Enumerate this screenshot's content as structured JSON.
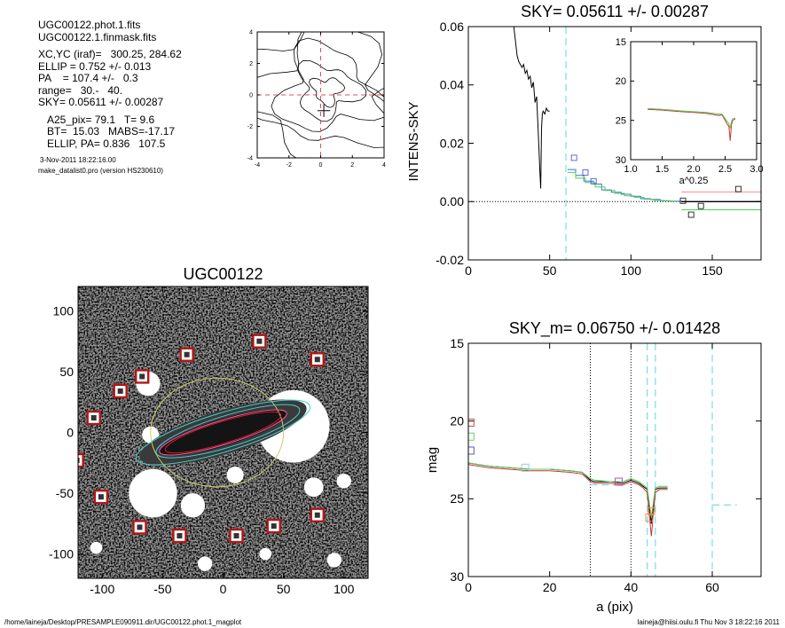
{
  "info": {
    "file1": "UGC00122.phot.1.fits",
    "file2": "UGC00122.1.finmask.fits",
    "xcyc": "XC,YC (iraf)=   300.25, 284.62",
    "ellip": "ELLIP = 0.752 +/- 0.013",
    "pa": "PA    = 107.4 +/-   0.3",
    "range": "range=   30.-   40.",
    "sky": "SKY= 0.05611 +/- 0.00287",
    "a25": "A25_pix= 79.1   T= 9.6",
    "bt": "BT=  15.03   MABS=-17.17",
    "ellip_pa": "ELLIP, PA= 0.836   107.5",
    "date": "3-Nov-2011 18:22:16.00",
    "program": "make_datalist0.pro (version HS230610)"
  },
  "footer": {
    "left": "/home/laineja/Desktop/PRESAMPLE090911.dir/UGC00122.phot.1_magplot",
    "right": "laineja@hiisi.oulu.fi  Thu Nov  3 18:22:16 2011"
  },
  "chart_data": [
    {
      "id": "contour",
      "type": "contour",
      "title": "",
      "xlim": [
        -4,
        4
      ],
      "ylim": [
        -4,
        4
      ],
      "xticks": [
        -4,
        -2,
        0,
        2,
        4
      ],
      "yticks": [
        -4,
        -2,
        0,
        2,
        4
      ],
      "center": [
        0,
        0
      ]
    },
    {
      "id": "sky",
      "type": "line",
      "title": "SKY= 0.05611 +/- 0.00287",
      "xlabel": "",
      "ylabel": "INTENS-SKY",
      "xlim": [
        0,
        180
      ],
      "ylim": [
        -0.02,
        0.06
      ],
      "xticks": [
        0,
        50,
        100,
        150
      ],
      "yticks": [
        -0.02,
        0.0,
        0.02,
        0.04,
        0.06
      ],
      "ytick_labels": [
        "-0.02",
        "0.00",
        "0.02",
        "0.04",
        "0.06"
      ],
      "vline": 60,
      "series": [
        {
          "color": "#000000",
          "x": [
            28,
            30,
            31,
            33,
            34,
            35,
            36,
            37,
            38,
            39,
            40,
            41,
            42,
            43,
            44,
            44.5,
            45,
            45.5,
            46,
            47,
            48,
            49,
            50
          ],
          "y": [
            0.06,
            0.05,
            0.048,
            0.046,
            0.047,
            0.044,
            0.045,
            0.042,
            0.043,
            0.039,
            0.041,
            0.034,
            0.036,
            0.024,
            0.01,
            0.0045,
            0.025,
            0.03,
            0.031,
            0.03,
            0.032,
            0.031,
            0.031
          ]
        },
        {
          "color": "#3377cc",
          "x": [
            61,
            66,
            66,
            71,
            71,
            77,
            77,
            82,
            82,
            88,
            88,
            94,
            94,
            100,
            100,
            106,
            106,
            112,
            112,
            118,
            118,
            124,
            124,
            131
          ],
          "y": [
            0.011,
            0.011,
            0.009,
            0.009,
            0.007,
            0.007,
            0.006,
            0.006,
            0.004,
            0.004,
            0.0032,
            0.0032,
            0.0025,
            0.0025,
            0.0018,
            0.0018,
            0.001,
            0.001,
            0.0007,
            0.0007,
            0.0003,
            0.0003,
            0.0001,
            0.0001
          ]
        },
        {
          "color": "#55cc55",
          "x": [
            61,
            66,
            66,
            72,
            72,
            78,
            78,
            84,
            84,
            90,
            90,
            96,
            96,
            102,
            102,
            108,
            108,
            114,
            114,
            120,
            120,
            128
          ],
          "y": [
            0.01,
            0.01,
            0.008,
            0.008,
            0.0065,
            0.0065,
            0.005,
            0.005,
            0.0038,
            0.0038,
            0.0028,
            0.0028,
            0.002,
            0.002,
            0.0014,
            0.0014,
            0.0008,
            0.0008,
            0.0004,
            0.0004,
            0.0002,
            0.0002
          ]
        },
        {
          "color": "#000000",
          "x": [
            131,
            180
          ],
          "y": [
            0.0,
            0.0
          ]
        },
        {
          "color": "#ff8888",
          "x": [
            131,
            180
          ],
          "y": [
            0.0033,
            0.0033
          ]
        },
        {
          "color": "#55cc55",
          "x": [
            131,
            180
          ],
          "y": [
            -0.0028,
            -0.0028
          ]
        }
      ],
      "markers": [
        {
          "color": "#4444cc",
          "x": 65,
          "y": 0.015
        },
        {
          "color": "#4444cc",
          "x": 72,
          "y": 0.01
        },
        {
          "color": "#4444cc",
          "x": 77,
          "y": 0.007
        },
        {
          "color": "#000000",
          "x": 132,
          "y": 0.0003
        },
        {
          "color": "#000000",
          "x": 137,
          "y": -0.0045
        },
        {
          "color": "#000000",
          "x": 143,
          "y": -0.0015
        },
        {
          "color": "#000000",
          "x": 166,
          "y": 0.0043
        }
      ]
    },
    {
      "id": "inset",
      "type": "line",
      "xlabel": "a^0.25",
      "xlim": [
        1.0,
        3.0
      ],
      "ylim": [
        30,
        15
      ],
      "xticks": [
        1.0,
        1.5,
        2.0,
        2.5,
        3.0
      ],
      "xtick_labels": [
        "1.0",
        "1.5",
        "2.0",
        "2.5",
        "3.0"
      ],
      "yticks": [
        15,
        20,
        25,
        30
      ],
      "series": [
        {
          "color": "#cc3333",
          "x": [
            1.27,
            1.5,
            1.8,
            2.0,
            2.2,
            2.4,
            2.45,
            2.52,
            2.56,
            2.58,
            2.6,
            2.62,
            2.66
          ],
          "y": [
            23.6,
            23.7,
            23.9,
            24.0,
            24.1,
            24.4,
            24.3,
            25.3,
            25.8,
            27.6,
            25.6,
            25.0,
            24.8
          ]
        },
        {
          "color": "#55cc55",
          "x": [
            1.27,
            1.5,
            1.8,
            2.0,
            2.2,
            2.4,
            2.45,
            2.52,
            2.56,
            2.58,
            2.6,
            2.62,
            2.66
          ],
          "y": [
            23.5,
            23.6,
            23.8,
            23.9,
            24.0,
            24.2,
            24.2,
            25.0,
            25.4,
            26.0,
            25.2,
            24.8,
            24.7
          ]
        }
      ]
    },
    {
      "id": "image",
      "type": "image",
      "title": "UGC00122",
      "xlim": [
        -120,
        120
      ],
      "ylim": [
        -120,
        120
      ],
      "xticks": [
        -100,
        -50,
        0,
        50,
        100
      ],
      "yticks": [
        -100,
        -50,
        0,
        50,
        100
      ],
      "masks": [
        {
          "x": -62,
          "y": 40,
          "r": 10
        },
        {
          "x": -60,
          "y": -2,
          "r": 7
        },
        {
          "x": 58,
          "y": 5,
          "r": 30
        },
        {
          "x": -58,
          "y": -50,
          "r": 20
        },
        {
          "x": -25,
          "y": -60,
          "r": 10
        },
        {
          "x": 10,
          "y": -35,
          "r": 7
        },
        {
          "x": 75,
          "y": -45,
          "r": 8
        },
        {
          "x": -15,
          "y": -108,
          "r": 6
        },
        {
          "x": 92,
          "y": -105,
          "r": 6
        },
        {
          "x": 100,
          "y": -40,
          "r": 6
        },
        {
          "x": -105,
          "y": -95,
          "r": 5
        },
        {
          "x": 35,
          "y": -100,
          "r": 5
        }
      ],
      "stars": [
        {
          "x": 30,
          "y": 75
        },
        {
          "x": -30,
          "y": 64
        },
        {
          "x": 78,
          "y": 60
        },
        {
          "x": -67,
          "y": 46
        },
        {
          "x": -85,
          "y": 34
        },
        {
          "x": -107,
          "y": 12
        },
        {
          "x": -121,
          "y": -23
        },
        {
          "x": -101,
          "y": -53
        },
        {
          "x": -69,
          "y": -78
        },
        {
          "x": -36,
          "y": -85
        },
        {
          "x": 11,
          "y": -85
        },
        {
          "x": 42,
          "y": -77
        },
        {
          "x": 78,
          "y": -68
        }
      ],
      "ellipses": [
        {
          "color": "#cccc66",
          "cx": -5,
          "cy": 0,
          "a": 55,
          "b": 45,
          "rot": 0
        },
        {
          "color": "#44cccc",
          "cx": 0,
          "cy": 0,
          "a": 75,
          "b": 16,
          "rot": 17
        },
        {
          "color": "#44cccc",
          "cx": 4,
          "cy": 1,
          "a": 62,
          "b": 13,
          "rot": 17
        },
        {
          "color": "#ff55aa",
          "cx": 0,
          "cy": 0,
          "a": 55,
          "b": 10,
          "rot": 17
        },
        {
          "color": "#cc2222",
          "cx": 0,
          "cy": 0,
          "a": 50,
          "b": 9,
          "rot": 17
        }
      ]
    },
    {
      "id": "mag",
      "type": "line",
      "title": "SKY_m=  0.06750 +/- 0.01428",
      "xlabel": "a (pix)",
      "ylabel": "mag",
      "xlim": [
        0,
        72
      ],
      "ylim": [
        30,
        15
      ],
      "xticks": [
        0,
        20,
        40,
        60
      ],
      "yticks": [
        15,
        20,
        25,
        30
      ],
      "vlines_dotted": [
        30,
        40
      ],
      "vlines_cyan": [
        44,
        46,
        60
      ],
      "series": [
        {
          "color": "#000000",
          "x": [
            0,
            5,
            10,
            15,
            20,
            25,
            28,
            30,
            31,
            35,
            38,
            40,
            42,
            43,
            44,
            45,
            46,
            47,
            49
          ],
          "y": [
            22.7,
            22.9,
            23.0,
            23.1,
            23.1,
            23.2,
            23.3,
            23.8,
            23.9,
            23.9,
            24.0,
            23.8,
            24.0,
            24.2,
            24.4,
            26.6,
            24.4,
            24.3,
            24.3
          ]
        },
        {
          "color": "#cc3333",
          "x": [
            0,
            5,
            10,
            15,
            20,
            25,
            28,
            30,
            31,
            35,
            38,
            40,
            42,
            43,
            44,
            45,
            46,
            47,
            49
          ],
          "y": [
            22.8,
            23.0,
            23.1,
            23.2,
            23.2,
            23.3,
            23.4,
            23.9,
            24.0,
            24.0,
            24.1,
            23.9,
            24.1,
            24.3,
            24.6,
            27.4,
            24.6,
            24.4,
            24.4
          ]
        },
        {
          "color": "#55cc55",
          "x": [
            0,
            5,
            10,
            15,
            20,
            25,
            28,
            30,
            31,
            35,
            38,
            40,
            42,
            43,
            44,
            45,
            46,
            47,
            49
          ],
          "y": [
            22.7,
            22.9,
            23.0,
            23.1,
            23.1,
            23.2,
            23.3,
            23.7,
            23.8,
            23.9,
            23.9,
            23.7,
            23.9,
            24.1,
            24.3,
            26.2,
            24.3,
            24.2,
            24.2
          ]
        }
      ],
      "cyan_dashes": [
        {
          "x": [
            30,
            36
          ],
          "y": [
            24.1,
            24.1
          ]
        },
        {
          "x": [
            60,
            66
          ],
          "y": [
            25.4,
            25.4
          ]
        }
      ],
      "markers": [
        {
          "color": "#cc3333",
          "x": 0.5,
          "y": 20.1
        },
        {
          "color": "#55cc55",
          "x": 0.5,
          "y": 21.0
        },
        {
          "color": "#4444cc",
          "x": 0.5,
          "y": 21.9
        },
        {
          "color": "#88cccc",
          "x": 14,
          "y": 23.0
        },
        {
          "color": "#aa44aa",
          "x": 37,
          "y": 23.9
        },
        {
          "color": "#e89050",
          "x": 45,
          "y": 25.8
        },
        {
          "color": "#e89050",
          "x": 44.5,
          "y": 26.2
        }
      ]
    }
  ]
}
